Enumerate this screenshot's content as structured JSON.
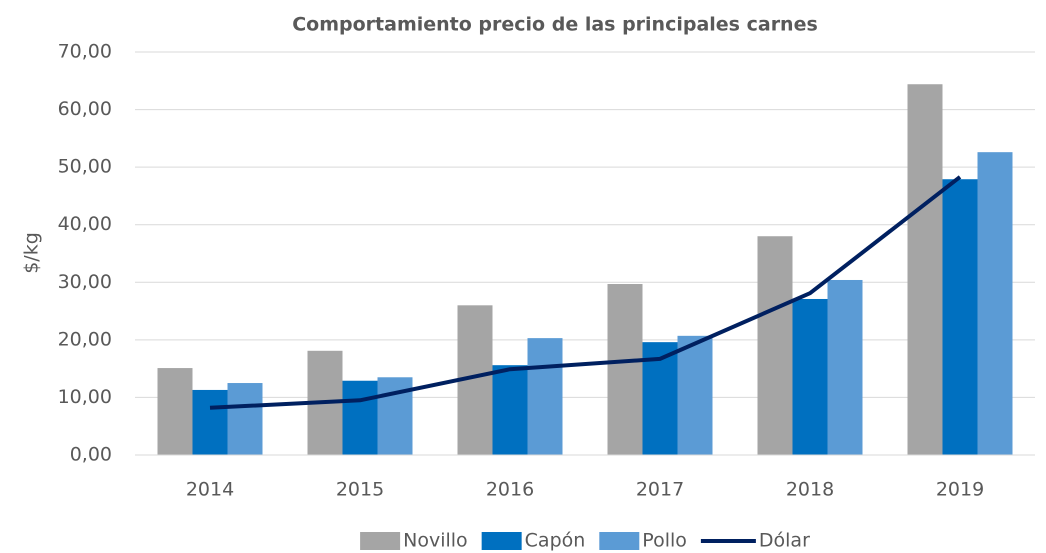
{
  "chart_data": {
    "type": "bar",
    "title": "Comportamiento precio de las principales carnes",
    "y_label": "$/kg",
    "categories": [
      "2014",
      "2015",
      "2016",
      "2017",
      "2018",
      "2019"
    ],
    "series": [
      {
        "name": "Novillo",
        "color": "#a5a5a5",
        "values": [
          15.1,
          18.1,
          26.0,
          29.7,
          38.0,
          64.4
        ]
      },
      {
        "name": "Capón",
        "color": "#0070c0",
        "values": [
          11.3,
          12.9,
          15.6,
          19.6,
          27.1,
          47.9
        ]
      },
      {
        "name": "Pollo",
        "color": "#5b9bd5",
        "values": [
          12.5,
          13.5,
          20.3,
          20.7,
          30.4,
          52.6
        ]
      },
      {
        "name": "Dólar",
        "color": "#002060",
        "type": "line",
        "values": [
          8.2,
          9.5,
          14.9,
          16.7,
          28.1,
          48.3
        ]
      }
    ],
    "ylim": [
      0,
      70
    ],
    "yticks": [
      {
        "value": 0,
        "label": "0,00"
      },
      {
        "value": 10,
        "label": "10,00"
      },
      {
        "value": 20,
        "label": "20,00"
      },
      {
        "value": 30,
        "label": "30,00"
      },
      {
        "value": 40,
        "label": "40,00"
      },
      {
        "value": 50,
        "label": "50,00"
      },
      {
        "value": 60,
        "label": "60,00"
      },
      {
        "value": 70,
        "label": "70,00"
      }
    ],
    "grid": true,
    "legend": "bottom"
  }
}
